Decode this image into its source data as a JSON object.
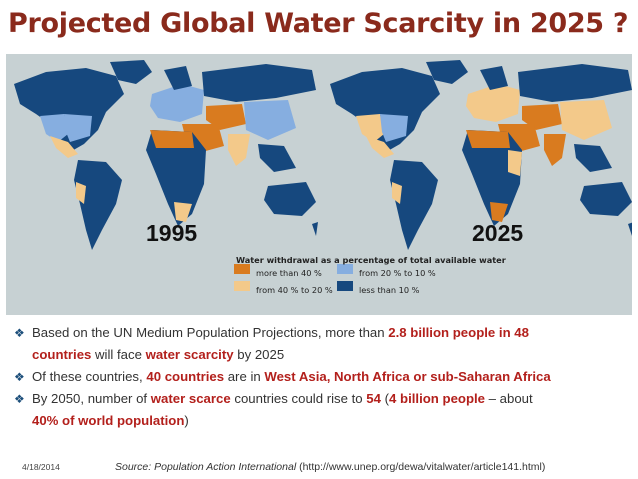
{
  "title": "Projected Global Water Scarcity in 2025 ?",
  "maps": {
    "left_year": "1995",
    "right_year": "2025"
  },
  "legend": {
    "title": "Water withdrawal as a percentage of total available water",
    "items": [
      {
        "label": "more than 40 %",
        "color": "#d97b1f"
      },
      {
        "label": "from 40 % to 20 %",
        "color": "#f3c98a"
      },
      {
        "label": "from 20 % to 10 %",
        "color": "#86aee0"
      },
      {
        "label": "less than 10 %",
        "color": "#16487e"
      }
    ]
  },
  "bullets": [
    {
      "line1_pre": "Based on the UN Medium Population Projections, more than ",
      "line1_hl": "2.8 billion people in 48",
      "line2_hl1": "countries",
      "line2_mid": " will face ",
      "line2_hl2": "water scarcity",
      "line2_post": " by 2025"
    },
    {
      "pre": "Of these countries, ",
      "hl1": "40 countries",
      "mid": " are in ",
      "hl2": "West Asia, North Africa or sub-Saharan Africa"
    },
    {
      "line1_pre": "By 2050, number of ",
      "line1_hl1": "water scarce",
      "line1_mid": " countries could rise to ",
      "line1_hl2": "54",
      "line1_mid2": " (",
      "line1_hl3": "4 billion people",
      "line1_post": " – about",
      "line2_hl": "40% of world population",
      "line2_post": ")"
    }
  ],
  "footer": {
    "date": "4/18/2014",
    "source_label": "Source: Population Action International",
    "source_url": " (http://www.unep.org/dewa/vitalwater/article141.html)"
  }
}
